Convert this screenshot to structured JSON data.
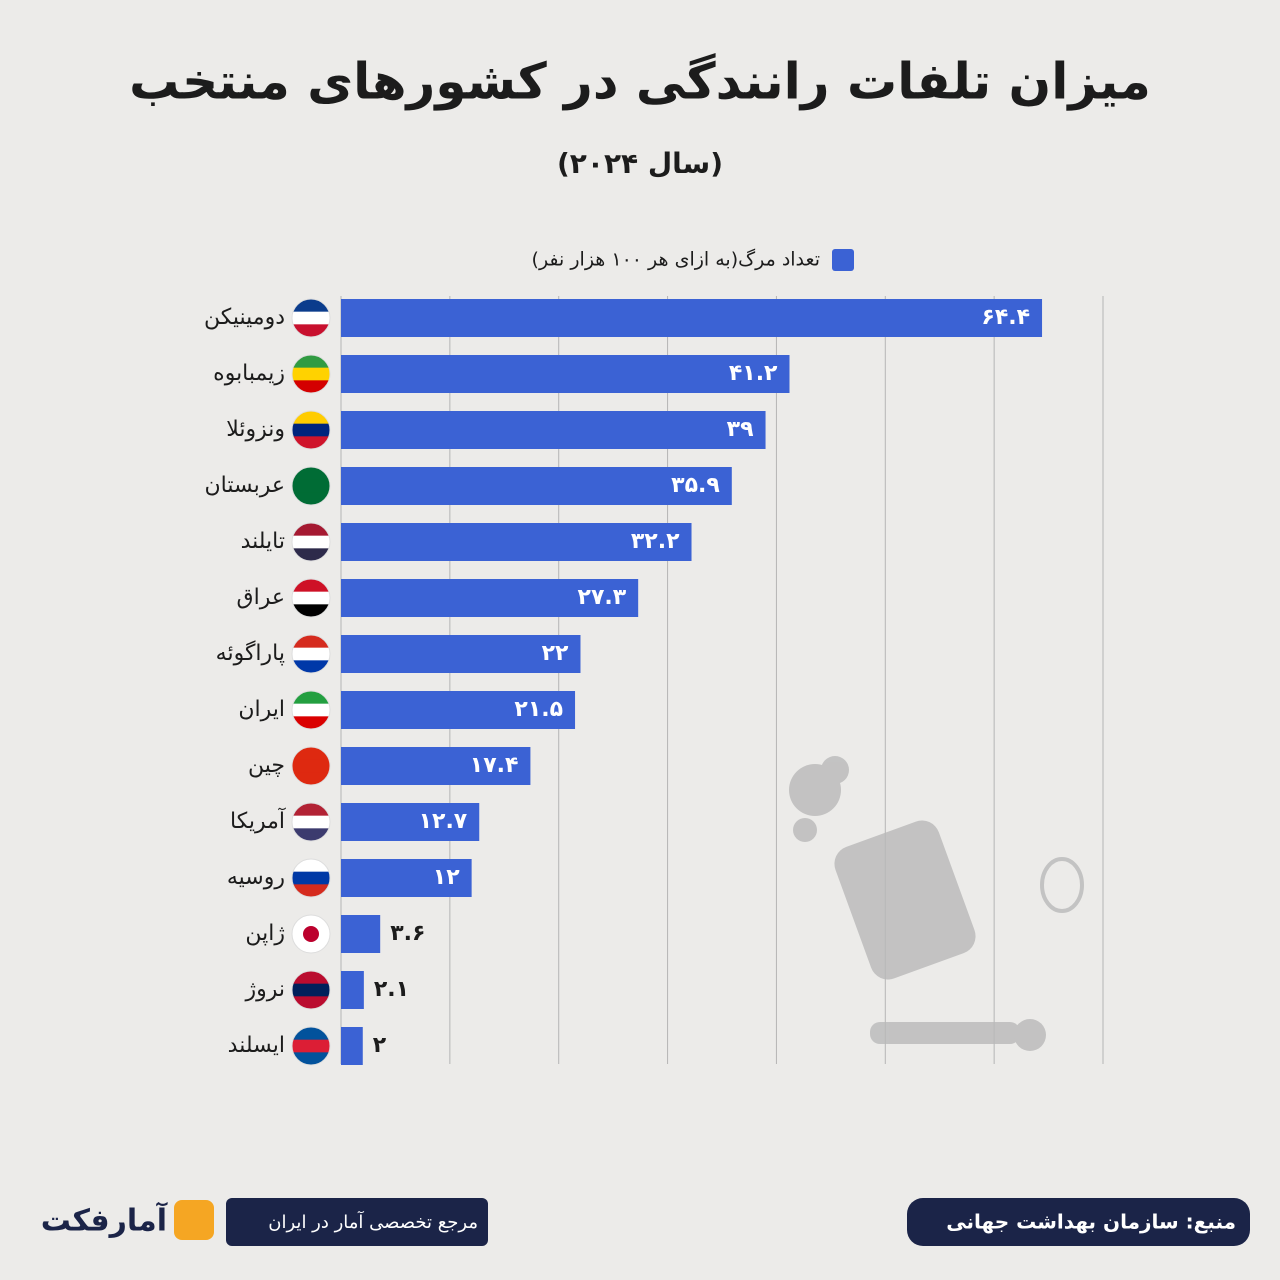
{
  "chart_data": {
    "type": "hbar",
    "title": "میزان تلفات رانندگی در کشورهای منتخب",
    "subtitle": "(سال ۲۰۲۴)",
    "categories": [
      "دومینیکن",
      "زیمبابوه",
      "ونزوئلا",
      "عربستان",
      "تایلند",
      "عراق",
      "پاراگوئه",
      "ایران",
      "چین",
      "آمریکا",
      "روسیه",
      "ژاپن",
      "نروژ",
      "ایسلند"
    ],
    "series": [
      {
        "name": "تعداد مرگ(به ازای هر ۱۰۰ هزار نفر)",
        "color": "#3b62d4",
        "values": [
          64.4,
          41.2,
          39,
          35.9,
          32.2,
          27.3,
          22,
          21.5,
          17.4,
          12.7,
          12,
          3.6,
          2.1,
          2
        ],
        "value_labels": [
          "۶۴.۴",
          "۴۱.۲",
          "۳۹",
          "۳۵.۹",
          "۳۲.۲",
          "۲۷.۳",
          "۲۲",
          "۲۱.۵",
          "۱۷.۴",
          "۱۲.۷",
          "۱۲",
          "۳.۶",
          "۲.۱",
          "۲"
        ]
      }
    ],
    "xlim": [
      0,
      70
    ],
    "xticks": [
      0,
      10,
      20,
      30,
      40,
      50,
      60,
      70
    ],
    "grid": true,
    "legend": "top",
    "source": "منبع: سازمان بهداشت جهانی",
    "tagline": "مرجع تخصصی آمار در ایران",
    "brand": "آمارفکت"
  }
}
